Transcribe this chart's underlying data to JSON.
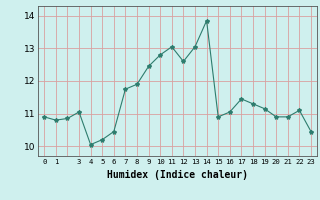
{
  "x": [
    0,
    1,
    2,
    3,
    4,
    5,
    6,
    7,
    8,
    9,
    10,
    11,
    12,
    13,
    14,
    15,
    16,
    17,
    18,
    19,
    20,
    21,
    22,
    23
  ],
  "y": [
    10.9,
    10.8,
    10.85,
    11.05,
    10.05,
    10.2,
    10.45,
    11.75,
    11.9,
    12.45,
    12.8,
    13.05,
    12.6,
    13.05,
    13.85,
    10.9,
    11.05,
    11.45,
    11.3,
    11.15,
    10.9,
    10.9,
    11.1,
    10.45
  ],
  "line_color": "#2e7d6e",
  "marker": "*",
  "marker_size": 3,
  "xlabel": "Humidex (Indice chaleur)",
  "xlabel_fontsize": 7,
  "xtick_labels": [
    "0",
    "1",
    "",
    "3",
    "4",
    "5",
    "6",
    "7",
    "8",
    "9",
    "10",
    "11",
    "12",
    "13",
    "14",
    "15",
    "16",
    "17",
    "18",
    "19",
    "20",
    "21",
    "22",
    "23"
  ],
  "yticks": [
    10,
    11,
    12,
    13,
    14
  ],
  "ylim": [
    9.7,
    14.3
  ],
  "xlim": [
    -0.5,
    23.5
  ],
  "bg_color": "#cff0ee",
  "grid_color": "#d9a0a0",
  "line_width": 0.8
}
